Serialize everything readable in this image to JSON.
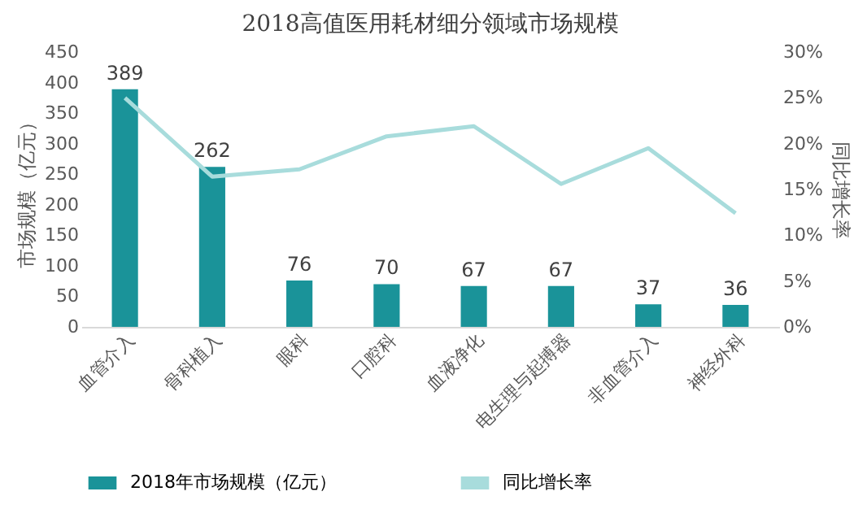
{
  "chart_data": {
    "type": "bar",
    "title": "2018高值医用耗材细分领域市场规模",
    "categories": [
      "血管介入",
      "骨科植入",
      "眼科",
      "口腔科",
      "血液净化",
      "电生理与起搏器",
      "非血管介入",
      "神经外科"
    ],
    "series": [
      {
        "name": "2018年市场规模（亿元）",
        "color": "#1a9399",
        "values": [
          389,
          262,
          76,
          70,
          67,
          67,
          37,
          36
        ],
        "value_labels": [
          "389",
          "262",
          "76",
          "70",
          "67",
          "67",
          "37",
          "36"
        ]
      },
      {
        "name": "同比增长率",
        "type": "line",
        "axis": "y2",
        "color": "#a8dcdc",
        "values": [
          25.0,
          16.4,
          17.2,
          20.8,
          21.9,
          15.6,
          19.5,
          12.4
        ]
      }
    ],
    "ylabel": "市场规模（亿元）",
    "y2label": "同比增长率",
    "ylim": [
      0,
      450
    ],
    "yticks": [
      0,
      50,
      100,
      150,
      200,
      250,
      300,
      350,
      400,
      450
    ],
    "y2lim": [
      0,
      30
    ],
    "y2ticks": [
      {
        "value": 0,
        "label": "0%"
      },
      {
        "value": 5,
        "label": "5%"
      },
      {
        "value": 10,
        "label": "10%"
      },
      {
        "value": 15,
        "label": "15%"
      },
      {
        "value": 20,
        "label": "20%"
      },
      {
        "value": 25,
        "label": "25%"
      },
      {
        "value": 30,
        "label": "30%"
      }
    ],
    "grid": false,
    "legend": "bottom",
    "marker": "none",
    "line_style": "solid"
  }
}
